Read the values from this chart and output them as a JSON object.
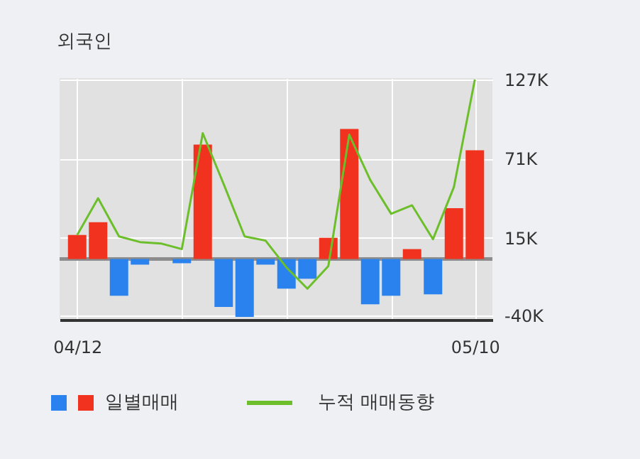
{
  "chart_data": {
    "type": "bar",
    "title": "외국인",
    "categories": [
      "04/12",
      null,
      null,
      null,
      null,
      null,
      null,
      null,
      null,
      null,
      null,
      null,
      null,
      null,
      null,
      null,
      null,
      null,
      null,
      "05/10"
    ],
    "series": [
      {
        "name": "일별매매",
        "colors": [
          "#f0321e",
          "#f0321e",
          "#2a82ee",
          "#2a82ee",
          "#2a82ee",
          "#2a82ee",
          "#f0321e",
          "#2a82ee",
          "#2a82ee",
          "#2a82ee",
          "#2a82ee",
          "#2a82ee",
          "#f0321e",
          "#f0321e",
          "#2a82ee",
          "#2a82ee",
          "#f0321e",
          "#2a82ee",
          "#f0321e",
          "#f0321e"
        ],
        "values": [
          17,
          26,
          -26,
          -4,
          0,
          -3,
          81,
          -34,
          -41,
          -4,
          -21,
          -14,
          15,
          92,
          -32,
          -26,
          7,
          -25,
          36,
          77
        ]
      },
      {
        "name": "누적 매매동향",
        "type": "line",
        "color": "#6cbf2a",
        "values": [
          17,
          43,
          16,
          12,
          11,
          7,
          89,
          53,
          16,
          13,
          -6,
          -21,
          -5,
          88,
          56,
          32,
          38,
          14,
          51,
          127
        ]
      }
    ],
    "ylim": [
      -43,
      128
    ],
    "yticks": [
      {
        "value": -40,
        "label": "-40K"
      },
      {
        "value": 15,
        "label": "15K"
      },
      {
        "value": 71,
        "label": "71K"
      },
      {
        "value": 127,
        "label": "127K"
      }
    ],
    "grid": true,
    "ref_lines": [
      {
        "axis": "y",
        "value": 0,
        "color": "#8c8c8c"
      }
    ],
    "legend": "bottom"
  }
}
